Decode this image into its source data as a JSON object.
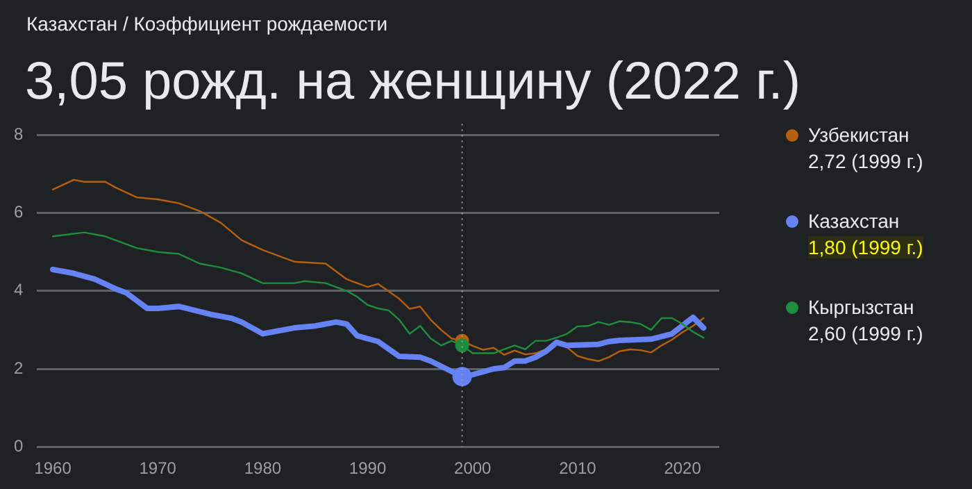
{
  "chart_data": {
    "type": "line",
    "subtitle": "Казахстан / Коэффициент рождаемости",
    "title": "3,05 рожд. на женщину (2022 г.)",
    "xlim": [
      1958.5,
      2023.5
    ],
    "xticks": [
      1960,
      1970,
      1980,
      1990,
      2000,
      2010,
      2020
    ],
    "ylim": [
      0,
      8
    ],
    "yticks": [
      0,
      2,
      4,
      6,
      8
    ],
    "grid": "y",
    "legend": "right",
    "marker": "none",
    "line_style": "solid",
    "series": [
      {
        "name": "Узбекистан",
        "color": "#b5600f",
        "x": [
          1960,
          1962,
          1963,
          1965,
          1966,
          1968,
          1970,
          1972,
          1974,
          1976,
          1978,
          1980,
          1982,
          1983,
          1986,
          1987,
          1988,
          1990,
          1991,
          1992,
          1993,
          1994,
          1995,
          1996,
          1997,
          1998,
          1999,
          2000,
          2001,
          2002,
          2003,
          2004,
          2005,
          2006,
          2007,
          2008,
          2009,
          2010,
          2011,
          2012,
          2013,
          2014,
          2015,
          2016,
          2017,
          2018,
          2019,
          2020,
          2021,
          2022
        ],
        "values": [
          6.6,
          6.85,
          6.8,
          6.8,
          6.65,
          6.4,
          6.35,
          6.25,
          6.05,
          5.75,
          5.3,
          5.05,
          4.85,
          4.75,
          4.7,
          4.5,
          4.3,
          4.1,
          4.18,
          3.99,
          3.8,
          3.54,
          3.6,
          3.26,
          3.0,
          2.78,
          2.72,
          2.59,
          2.49,
          2.54,
          2.36,
          2.47,
          2.37,
          2.4,
          2.5,
          2.7,
          2.55,
          2.33,
          2.25,
          2.2,
          2.3,
          2.45,
          2.5,
          2.48,
          2.42,
          2.6,
          2.75,
          2.94,
          3.1,
          3.3
        ]
      },
      {
        "name": "Казахстан",
        "color": "#6583f5",
        "x": [
          1960,
          1962,
          1964,
          1966,
          1967,
          1969,
          1970,
          1972,
          1975,
          1977,
          1978,
          1980,
          1983,
          1985,
          1987,
          1988,
          1989,
          1991,
          1993,
          1995,
          1996,
          1999,
          2000,
          2002,
          2003,
          2004,
          2005,
          2006,
          2007,
          2008,
          2009,
          2012,
          2013,
          2014,
          2017,
          2019,
          2021,
          2022
        ],
        "values": [
          4.55,
          4.45,
          4.3,
          4.05,
          3.95,
          3.55,
          3.55,
          3.6,
          3.4,
          3.3,
          3.2,
          2.9,
          3.05,
          3.1,
          3.2,
          3.15,
          2.85,
          2.7,
          2.32,
          2.3,
          2.2,
          1.8,
          1.85,
          2.0,
          2.03,
          2.2,
          2.2,
          2.3,
          2.45,
          2.68,
          2.6,
          2.63,
          2.7,
          2.73,
          2.76,
          2.9,
          3.32,
          3.05
        ]
      },
      {
        "name": "Кыргызстан",
        "color": "#1e8e3e",
        "x": [
          1960,
          1963,
          1965,
          1968,
          1970,
          1972,
          1974,
          1976,
          1978,
          1980,
          1983,
          1984,
          1986,
          1988,
          1989,
          1990,
          1991,
          1992,
          1993,
          1994,
          1995,
          1996,
          1997,
          1998,
          1999,
          2000,
          2002,
          2003,
          2004,
          2005,
          2006,
          2007,
          2008,
          2009,
          2010,
          2011,
          2012,
          2013,
          2014,
          2015,
          2016,
          2017,
          2018,
          2019,
          2020,
          2021,
          2022
        ],
        "values": [
          5.4,
          5.5,
          5.4,
          5.1,
          5.0,
          4.95,
          4.7,
          4.6,
          4.45,
          4.2,
          4.2,
          4.25,
          4.2,
          4.0,
          3.85,
          3.64,
          3.55,
          3.5,
          3.26,
          2.9,
          3.1,
          2.78,
          2.6,
          2.72,
          2.6,
          2.4,
          2.4,
          2.5,
          2.6,
          2.5,
          2.72,
          2.72,
          2.8,
          2.9,
          3.09,
          3.1,
          3.2,
          3.13,
          3.22,
          3.2,
          3.15,
          3.0,
          3.3,
          3.3,
          3.15,
          2.95,
          2.8
        ]
      }
    ],
    "ref_lines": [
      {
        "axis": "x",
        "value": 1999,
        "color": "#9aa0a6",
        "line_style": "dotted"
      }
    ],
    "annotations": [
      "2,72 (1999 г.)",
      "1,80 (1999 г.)",
      "2,60 (1999 г.)"
    ]
  }
}
